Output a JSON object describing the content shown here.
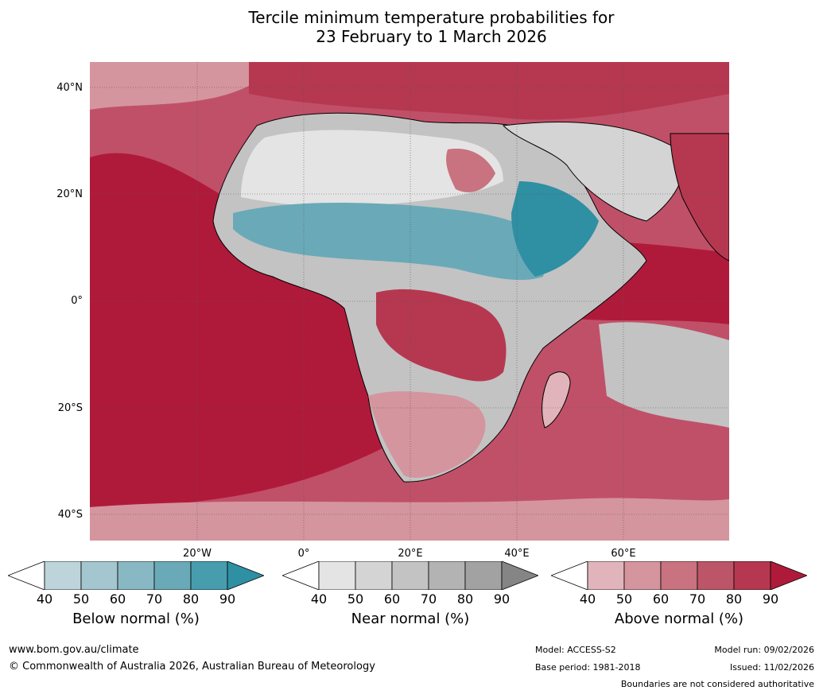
{
  "title": {
    "line1": "Tercile minimum temperature probabilities for",
    "line2": "23 February to 1 March 2026"
  },
  "axes": {
    "latitude_labels": [
      "40°N",
      "20°N",
      "0°",
      "20°S",
      "40°S"
    ],
    "longitude_labels": [
      "20°W",
      "0°",
      "20°E",
      "40°E",
      "60°E"
    ]
  },
  "colorbars": [
    {
      "label": "Below normal (%)",
      "ticks": [
        "40",
        "50",
        "60",
        "70",
        "80",
        "90"
      ],
      "colors": [
        "#ffffff",
        "#bcd4da",
        "#a4c6ce",
        "#88b8c4",
        "#6aa9b8",
        "#479dad",
        "#2f8fa3"
      ]
    },
    {
      "label": "Near normal (%)",
      "ticks": [
        "40",
        "50",
        "60",
        "70",
        "80",
        "90"
      ],
      "colors": [
        "#ffffff",
        "#e4e4e4",
        "#d4d4d4",
        "#c3c3c3",
        "#b3b3b3",
        "#a2a2a2",
        "#858585"
      ]
    },
    {
      "label": "Above normal (%)",
      "ticks": [
        "40",
        "50",
        "60",
        "70",
        "80",
        "90"
      ],
      "colors": [
        "#ffffff",
        "#e1b4bb",
        "#d4959e",
        "#c8737f",
        "#bc5567",
        "#b53850",
        "#b01a3a"
      ]
    }
  ],
  "footer": {
    "website": "www.bom.gov.au/climate",
    "copyright": "© Commonwealth of Australia 2026, Australian Bureau of Meteorology",
    "model": "Model: ACCESS-S2",
    "base_period": "Base period: 1981-2018",
    "model_run": "Model run: 09/02/2026",
    "issued": "Issued: 11/02/2026",
    "disclaimer": "Boundaries are not considered authoritative"
  }
}
